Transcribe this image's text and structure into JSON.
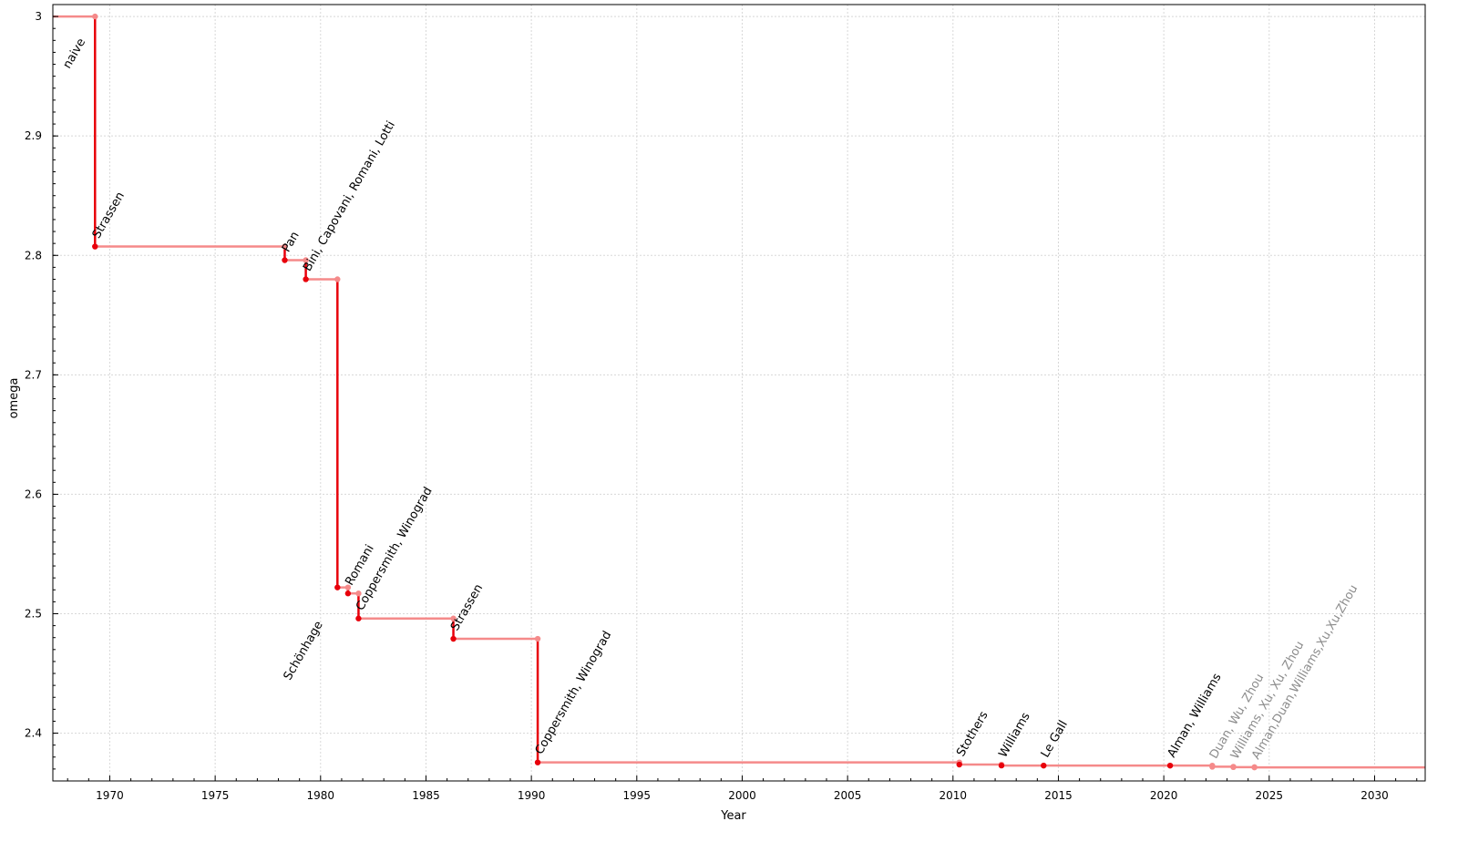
{
  "chart_data": {
    "type": "line",
    "style": "step",
    "xlabel": "Year",
    "ylabel": "omega",
    "xlim": [
      1967.3,
      2032.4
    ],
    "ylim": [
      2.36,
      3.01
    ],
    "xticks": [
      1970,
      1975,
      1980,
      1985,
      1990,
      1995,
      2000,
      2005,
      2010,
      2015,
      2020,
      2025,
      2030
    ],
    "yticks": [
      2.4,
      2.5,
      2.6,
      2.7,
      2.8,
      2.9,
      3
    ],
    "ytick_labels": [
      "2.4",
      "2.5",
      "2.6",
      "2.7",
      "2.8",
      "2.9",
      "3"
    ],
    "grid": true,
    "colors": {
      "step_drop": "#e8000b",
      "step_flat": "#f58a8a",
      "label": "#000000",
      "label_recent": "#8c8c8c",
      "grid": "#d8d8d8"
    },
    "points": [
      {
        "label": "naive",
        "x": 1967.3,
        "y": 3.0
      },
      {
        "label": "Strassen",
        "x": 1969.3,
        "y": 2.8074
      },
      {
        "label": "Pan",
        "x": 1978.3,
        "y": 2.796
      },
      {
        "label": "Bini, Capovani, Romani, Lotti",
        "x": 1979.3,
        "y": 2.78
      },
      {
        "label": "Schönhage",
        "x": 1980.8,
        "y": 2.522
      },
      {
        "label": "Romani",
        "x": 1981.3,
        "y": 2.517
      },
      {
        "label": "Coppersmith, Winograd",
        "x": 1981.8,
        "y": 2.496
      },
      {
        "label": "Strassen",
        "x": 1986.3,
        "y": 2.479
      },
      {
        "label": "Coppersmith, Winograd",
        "x": 1990.3,
        "y": 2.3755
      },
      {
        "label": "Stothers",
        "x": 2010.3,
        "y": 2.3737
      },
      {
        "label": "Williams",
        "x": 2012.3,
        "y": 2.3729
      },
      {
        "label": "Le Gall",
        "x": 2014.3,
        "y": 2.37286
      },
      {
        "label": "Alman, Williams",
        "x": 2020.3,
        "y": 2.37286
      },
      {
        "label": "Duan, Wu, Zhou",
        "x": 2022.3,
        "y": 2.37188,
        "recent": true
      },
      {
        "label": "Williams, Xu, Xu, Zhou",
        "x": 2023.3,
        "y": 2.37155,
        "recent": true
      },
      {
        "label": "Alman,Duan,Williams,Xu,Xu,Zhou",
        "x": 2024.3,
        "y": 2.37134,
        "recent": true
      }
    ]
  }
}
